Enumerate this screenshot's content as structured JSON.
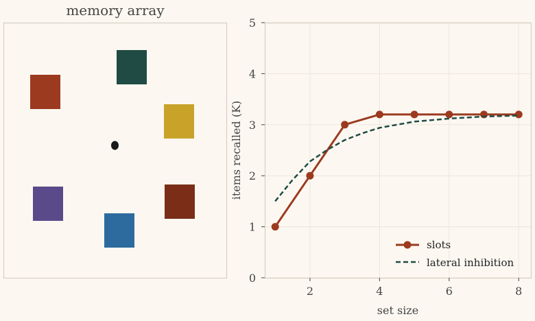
{
  "left_panel": {
    "title": "memory array",
    "colors": {
      "red_orange": "#9c3a1f",
      "dark_green": "#1f4b44",
      "mustard": "#c9a22a",
      "brown_red": "#7b2d17",
      "blue": "#2d6b9e",
      "purple": "#5a4a8a",
      "fixation": "#1a1a1a"
    }
  },
  "chart_data": {
    "type": "line",
    "xlabel": "set size",
    "ylabel": "items recalled (K)",
    "xlim": [
      0.7,
      8.35
    ],
    "ylim": [
      0,
      5
    ],
    "xticks": [
      2,
      4,
      6,
      8
    ],
    "yticks": [
      0,
      1,
      2,
      3,
      4,
      5
    ],
    "grid": true,
    "legend": "bottom-right",
    "series": [
      {
        "name": "slots",
        "color": "#9c3a1f",
        "style": "solid-markers",
        "x": [
          1,
          2,
          3,
          4,
          5,
          6,
          7,
          8
        ],
        "y": [
          1,
          2,
          3,
          3.2,
          3.2,
          3.2,
          3.2,
          3.2
        ]
      },
      {
        "name": "lateral inhibition",
        "color": "#1f4b44",
        "style": "dashed",
        "x": [
          1,
          1.5,
          2,
          2.5,
          3,
          3.5,
          4,
          4.5,
          5,
          5.5,
          6,
          6.5,
          7,
          7.5,
          8
        ],
        "y": [
          1.5,
          1.92,
          2.28,
          2.51,
          2.7,
          2.83,
          2.94,
          3.0,
          3.06,
          3.09,
          3.12,
          3.14,
          3.16,
          3.17,
          3.18
        ]
      }
    ]
  }
}
